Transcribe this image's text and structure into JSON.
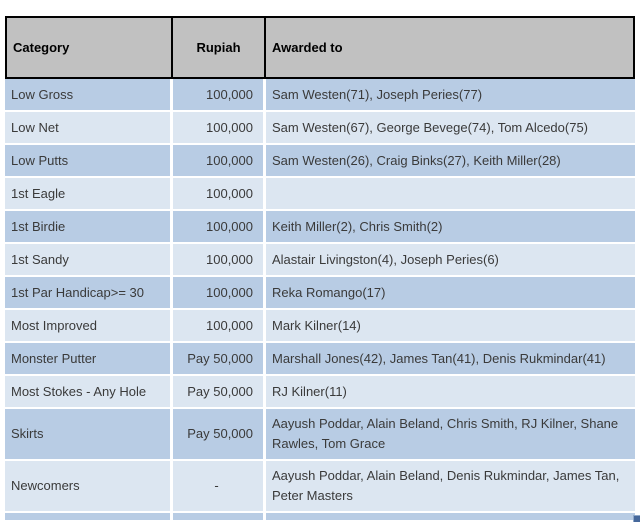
{
  "style": {
    "header-bg": "#C1C1C1",
    "header-text": "#000000",
    "header-border": "#000000",
    "row-dark": "#B8CCE4",
    "row-light": "#DCE6F1",
    "text": "#3A3A3A",
    "corner-mark": "#46689B"
  },
  "icons": {
    "corner_mark": "resize-handle-icon"
  },
  "chart_data": {
    "type": "table",
    "columns": [
      "Category",
      "Rupiah",
      "Awarded to"
    ],
    "rows": [
      [
        "Low Gross",
        "100,000",
        "Sam Westen(71), Joseph Peries(77)"
      ],
      [
        "Low Net",
        "100,000",
        "Sam Westen(67), George Bevege(74), Tom Alcedo(75)"
      ],
      [
        "Low Putts",
        "100,000",
        "Sam Westen(26), Craig Binks(27), Keith Miller(28)"
      ],
      [
        "1st Eagle",
        "100,000",
        ""
      ],
      [
        "1st Birdie",
        "100,000",
        "Keith Miller(2), Chris Smith(2)"
      ],
      [
        "1st Sandy",
        "100,000",
        "Alastair Livingston(4), Joseph Peries(6)"
      ],
      [
        "1st Par Handicap>= 30",
        "100,000",
        "Reka Romango(17)"
      ],
      [
        "Most Improved",
        "100,000",
        "Mark Kilner(14)"
      ],
      [
        "Monster Putter",
        "Pay 50,000",
        "Marshall Jones(42), James Tan(41), Denis Rukmindar(41)"
      ],
      [
        "Most Stokes - Any Hole",
        "Pay 50,000",
        "RJ Kilner(11)"
      ],
      [
        "Skirts",
        "Pay 50,000",
        "Aayush Poddar, Alain Beland, Chris Smith, RJ Kilner, Shane Rawles, Tom Grace"
      ],
      [
        "Newcomers",
        "-",
        "Aayush Poddar, Alain Beland, Denis Rukmindar, James Tan, Peter Masters"
      ]
    ],
    "layout": {
      "banding": "alternating dark/light blue rows",
      "header_style": "gray fill, black 2px border, bold text",
      "rupiah_alignment": "right, dash centered"
    }
  }
}
